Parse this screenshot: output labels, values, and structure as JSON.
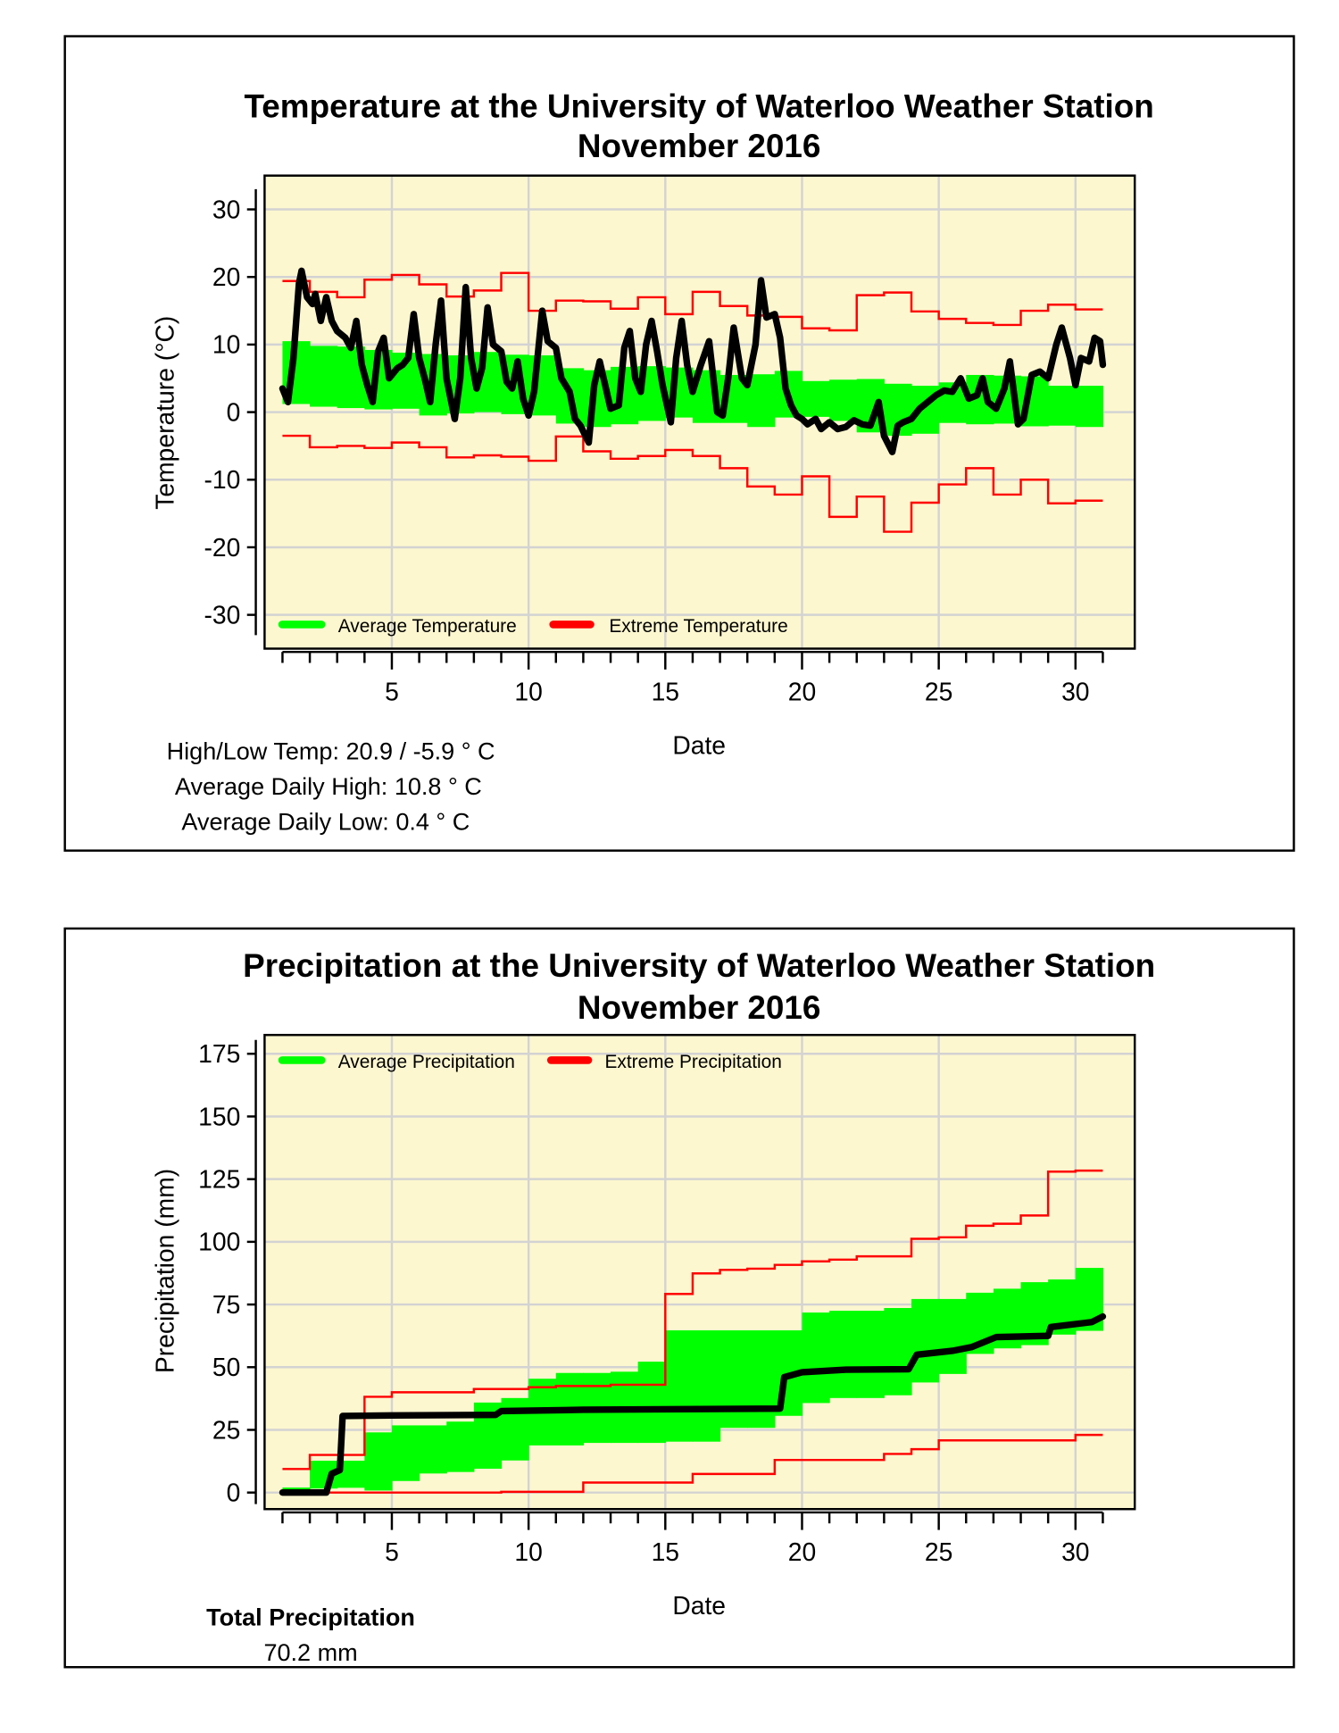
{
  "chart_data": [
    {
      "type": "line",
      "title": "Temperature at the University of Waterloo Weather Station",
      "subtitle": "November 2016",
      "xlabel": "Date",
      "ylabel": "Temperature (°C)",
      "xlim": [
        1,
        31
      ],
      "ylim": [
        -35,
        35
      ],
      "xticks": [
        5,
        10,
        15,
        20,
        25,
        30
      ],
      "yticks": [
        30,
        20,
        10,
        0,
        -10,
        -20,
        -30
      ],
      "grid": true,
      "legend": {
        "placement": "bottom-left",
        "entries": [
          "Average Temperature",
          "Extreme Temperature"
        ]
      },
      "colors": {
        "plot_bg": "#fdf7cf",
        "average": "#00ff00",
        "extreme": "#ff0000",
        "observed": "#000000",
        "grid": "#d3d3d3"
      },
      "extreme_high": [
        19.4,
        17.8,
        17.0,
        19.6,
        20.3,
        18.9,
        17.1,
        18.0,
        20.6,
        15.0,
        16.5,
        16.4,
        15.3,
        17.0,
        14.5,
        17.8,
        15.7,
        14.3,
        14.1,
        12.4,
        12.1,
        17.3,
        17.7,
        14.9,
        13.8,
        13.2,
        12.9,
        15.0,
        15.9,
        15.2
      ],
      "extreme_low": [
        -3.5,
        -5.2,
        -5.0,
        -5.3,
        -4.5,
        -5.2,
        -6.7,
        -6.4,
        -6.6,
        -7.2,
        -3.6,
        -5.8,
        -6.9,
        -6.5,
        -5.6,
        -6.5,
        -8.3,
        -11.0,
        -12.2,
        -9.5,
        -15.5,
        -12.5,
        -17.7,
        -13.4,
        -10.7,
        -8.3,
        -12.2,
        -10.0,
        -13.5,
        -13.1
      ],
      "average_high": [
        10.5,
        9.8,
        9.7,
        9.2,
        8.8,
        8.6,
        8.4,
        8.9,
        8.5,
        8.4,
        6.5,
        6.2,
        6.7,
        6.8,
        6.6,
        6.2,
        5.5,
        5.6,
        6.1,
        4.6,
        4.8,
        4.9,
        4.2,
        3.9,
        4.4,
        5.5,
        5.4,
        5.3,
        3.9,
        3.9
      ],
      "average_low": [
        1.2,
        0.8,
        0.6,
        0.4,
        0.5,
        -0.5,
        -0.2,
        0.0,
        -0.3,
        -0.5,
        -1.7,
        -2.2,
        -1.8,
        -1.3,
        -0.8,
        -1.6,
        -1.6,
        -2.2,
        -0.8,
        -0.7,
        -1.3,
        -3.0,
        -3.5,
        -3.2,
        -1.6,
        -1.8,
        -1.7,
        -2.1,
        -2.0,
        -2.2
      ],
      "observed": [
        [
          1,
          3.5
        ],
        [
          1.2,
          1.5
        ],
        [
          1.4,
          8
        ],
        [
          1.6,
          19
        ],
        [
          1.7,
          20.9
        ],
        [
          1.9,
          17
        ],
        [
          2.1,
          16
        ],
        [
          2.2,
          17.5
        ],
        [
          2.4,
          13.5
        ],
        [
          2.6,
          17
        ],
        [
          2.8,
          13.5
        ],
        [
          3.0,
          12
        ],
        [
          3.3,
          11
        ],
        [
          3.5,
          9.5
        ],
        [
          3.7,
          13.5
        ],
        [
          3.9,
          7
        ],
        [
          4.1,
          4
        ],
        [
          4.3,
          1.5
        ],
        [
          4.5,
          9
        ],
        [
          4.7,
          11
        ],
        [
          4.9,
          5
        ],
        [
          5.2,
          6.5
        ],
        [
          5.4,
          7
        ],
        [
          5.6,
          8
        ],
        [
          5.8,
          14.5
        ],
        [
          6.0,
          8
        ],
        [
          6.2,
          5
        ],
        [
          6.4,
          1.5
        ],
        [
          6.6,
          10
        ],
        [
          6.8,
          16.5
        ],
        [
          7.0,
          5
        ],
        [
          7.3,
          -1
        ],
        [
          7.5,
          5
        ],
        [
          7.7,
          18.5
        ],
        [
          7.9,
          8
        ],
        [
          8.1,
          3.5
        ],
        [
          8.3,
          6.5
        ],
        [
          8.5,
          15.5
        ],
        [
          8.7,
          10
        ],
        [
          9.0,
          9
        ],
        [
          9.2,
          4.5
        ],
        [
          9.4,
          3.5
        ],
        [
          9.6,
          7.5
        ],
        [
          9.8,
          2
        ],
        [
          10.0,
          -0.5
        ],
        [
          10.2,
          3
        ],
        [
          10.5,
          15
        ],
        [
          10.7,
          10.5
        ],
        [
          11.0,
          9.5
        ],
        [
          11.2,
          5
        ],
        [
          11.5,
          3
        ],
        [
          11.7,
          -1
        ],
        [
          11.9,
          -2
        ],
        [
          12.2,
          -4.5
        ],
        [
          12.4,
          4
        ],
        [
          12.6,
          7.5
        ],
        [
          12.8,
          4
        ],
        [
          13.0,
          0.5
        ],
        [
          13.3,
          1
        ],
        [
          13.5,
          9.5
        ],
        [
          13.7,
          12
        ],
        [
          13.9,
          5
        ],
        [
          14.1,
          3
        ],
        [
          14.3,
          10
        ],
        [
          14.5,
          13.5
        ],
        [
          14.7,
          9
        ],
        [
          14.9,
          4
        ],
        [
          15.2,
          -1.5
        ],
        [
          15.4,
          8
        ],
        [
          15.6,
          13.5
        ],
        [
          15.8,
          7
        ],
        [
          16.0,
          3
        ],
        [
          16.3,
          7
        ],
        [
          16.6,
          10.5
        ],
        [
          16.9,
          0
        ],
        [
          17.1,
          -0.5
        ],
        [
          17.3,
          5
        ],
        [
          17.5,
          12.5
        ],
        [
          17.8,
          5
        ],
        [
          18.0,
          4
        ],
        [
          18.3,
          10
        ],
        [
          18.5,
          19.5
        ],
        [
          18.7,
          14
        ],
        [
          19.0,
          14.5
        ],
        [
          19.2,
          11
        ],
        [
          19.4,
          3.5
        ],
        [
          19.6,
          1
        ],
        [
          19.8,
          -0.5
        ],
        [
          20.0,
          -1
        ],
        [
          20.2,
          -1.8
        ],
        [
          20.5,
          -1
        ],
        [
          20.7,
          -2.5
        ],
        [
          21.0,
          -1.5
        ],
        [
          21.3,
          -2.5
        ],
        [
          21.6,
          -2.2
        ],
        [
          21.9,
          -1.2
        ],
        [
          22.2,
          -1.8
        ],
        [
          22.5,
          -2
        ],
        [
          22.8,
          1.5
        ],
        [
          23.0,
          -3.5
        ],
        [
          23.3,
          -5.9
        ],
        [
          23.5,
          -2
        ],
        [
          23.7,
          -1.5
        ],
        [
          24.0,
          -1
        ],
        [
          24.3,
          0.5
        ],
        [
          24.6,
          1.5
        ],
        [
          24.9,
          2.5
        ],
        [
          25.2,
          3.2
        ],
        [
          25.5,
          3.0
        ],
        [
          25.8,
          5
        ],
        [
          26.1,
          2
        ],
        [
          26.4,
          2.5
        ],
        [
          26.6,
          5
        ],
        [
          26.8,
          1.5
        ],
        [
          27.1,
          0.5
        ],
        [
          27.4,
          3.5
        ],
        [
          27.6,
          7.5
        ],
        [
          27.9,
          -1.8
        ],
        [
          28.1,
          -1
        ],
        [
          28.4,
          5.5
        ],
        [
          28.7,
          6
        ],
        [
          29.0,
          5
        ],
        [
          29.3,
          10
        ],
        [
          29.5,
          12.5
        ],
        [
          29.8,
          8
        ],
        [
          30.0,
          4
        ],
        [
          30.2,
          8
        ],
        [
          30.5,
          7.5
        ],
        [
          30.7,
          11
        ],
        [
          30.9,
          10.5
        ],
        [
          31,
          7
        ]
      ]
    },
    {
      "type": "line",
      "title": "Precipitation at the University of Waterloo Weather Station",
      "subtitle": "November 2016",
      "xlabel": "Date",
      "ylabel": "Precipitation (mm)",
      "xlim": [
        1,
        31
      ],
      "ylim": [
        -7,
        182
      ],
      "xticks": [
        5,
        10,
        15,
        20,
        25,
        30
      ],
      "yticks": [
        175,
        150,
        125,
        100,
        75,
        50,
        25,
        0
      ],
      "grid": true,
      "legend": {
        "placement": "top-left",
        "entries": [
          "Average Precipitation",
          "Extreme Precipitation"
        ]
      },
      "colors": {
        "plot_bg": "#fdf7cf",
        "average": "#00ff00",
        "extreme": "#ff0000",
        "observed": "#000000",
        "grid": "#d3d3d3"
      },
      "extreme_high": [
        9.4,
        15,
        15,
        38.2,
        40,
        40,
        40,
        41.3,
        41.3,
        42,
        42.5,
        42.5,
        43,
        43,
        79.2,
        87.4,
        88.8,
        89.3,
        90.8,
        92.2,
        92.9,
        94.2,
        94.2,
        101.2,
        101.8,
        106.4,
        107.2,
        110.5,
        128,
        128.4
      ],
      "extreme_low": [
        0,
        0,
        0,
        0,
        0,
        0,
        0,
        0,
        0.3,
        0.3,
        0.3,
        4,
        4,
        4,
        4,
        7.4,
        7.4,
        7.4,
        13,
        13,
        13,
        13,
        15.4,
        17.3,
        20.8,
        20.8,
        20.8,
        20.8,
        20.8,
        23
      ],
      "average_high": [
        2,
        12.7,
        12.7,
        24,
        26.8,
        26.8,
        28.3,
        35.9,
        37.7,
        45.4,
        47.7,
        47.7,
        48.2,
        52.2,
        64.7,
        64.7,
        64.7,
        64.7,
        64.7,
        71.8,
        72.5,
        72.5,
        73.6,
        77.2,
        77.2,
        79.7,
        81.3,
        83.9,
        85,
        89.6
      ],
      "average_low": [
        0,
        1.6,
        1.9,
        0.8,
        4.6,
        7.6,
        8.2,
        9.5,
        12.8,
        18.8,
        18.8,
        19.8,
        19.8,
        19.8,
        20.3,
        20.3,
        25.8,
        25.8,
        30.6,
        35.7,
        37.7,
        37.7,
        38.8,
        43.9,
        47.3,
        55.3,
        57.5,
        58.8,
        63,
        64.5
      ],
      "observed": [
        [
          1,
          0
        ],
        [
          2.6,
          0
        ],
        [
          2.8,
          7.5
        ],
        [
          3.1,
          9
        ],
        [
          3.2,
          30.5
        ],
        [
          5,
          30.8
        ],
        [
          8.8,
          31
        ],
        [
          9,
          32.5
        ],
        [
          12,
          33
        ],
        [
          19.2,
          33.5
        ],
        [
          19.35,
          46
        ],
        [
          20,
          48
        ],
        [
          21.6,
          49
        ],
        [
          23.9,
          49.2
        ],
        [
          24.2,
          55
        ],
        [
          25.5,
          56.5
        ],
        [
          26.2,
          58
        ],
        [
          27.1,
          62
        ],
        [
          29,
          62.5
        ],
        [
          29.1,
          66
        ],
        [
          30.6,
          68
        ],
        [
          31,
          70.2
        ]
      ]
    }
  ],
  "temperature_stats": {
    "high_low": "High/Low Temp:  20.9 / -5.9 ° C",
    "avg_high": "Average Daily High:  10.8 ° C",
    "avg_low": "Average Daily Low:  0.4 ° C"
  },
  "precipitation_stats": {
    "label": "Total Precipitation",
    "value": "70.2 mm"
  }
}
